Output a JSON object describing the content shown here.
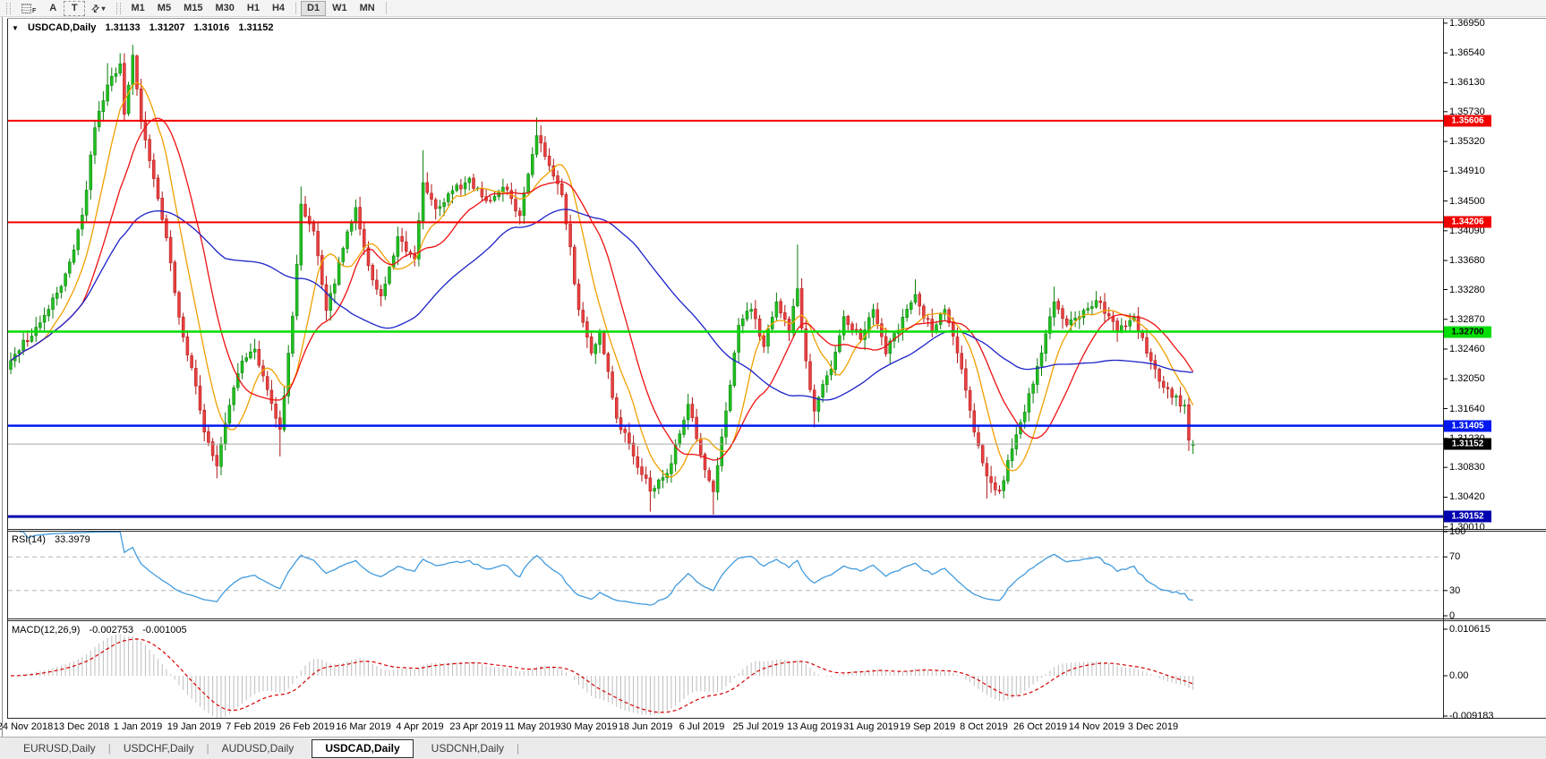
{
  "icons": {
    "collapse_triangle": "▼",
    "dropdown_caret": "▾",
    "arrange_arrows": "⇄"
  },
  "toolbar": {
    "grid_icon_sub_label": "F",
    "cursor_label": "A",
    "text_label": "T",
    "timeframes": [
      "M1",
      "M5",
      "M15",
      "M30",
      "H1",
      "H4",
      "D1",
      "W1",
      "MN"
    ],
    "active_timeframe": "D1"
  },
  "chart_header": {
    "symbol_period": "USDCAD,Daily",
    "open": "1.31133",
    "high": "1.31207",
    "low": "1.31016",
    "close": "1.31152"
  },
  "indicators": {
    "rsi": {
      "label": "RSI(14)",
      "value": "33.3979",
      "axis_ticks": [
        "100",
        "70",
        "30",
        "0"
      ],
      "overbought": 70,
      "oversold": 30,
      "line_color": "#419bde"
    },
    "macd": {
      "label": "MACD(12,26,9)",
      "macd_value": "-0.002753",
      "signal_value": "-0.001005",
      "axis_ticks": [
        "0.010615",
        "0.00",
        "-0.009183"
      ],
      "histogram_color": "#bdbdbd",
      "signal_color": "#d40000"
    }
  },
  "tab_bar": {
    "tabs": [
      "EURUSD,Daily",
      "USDCHF,Daily",
      "AUDUSD,Daily",
      "USDCAD,Daily",
      "USDCNH,Daily"
    ],
    "active_tab": "USDCAD,Daily"
  },
  "chart_data": {
    "type": "candlestick",
    "symbol": "USDCAD",
    "period": "Daily",
    "bars": 282,
    "price_range": [
      1.29985,
      1.3701
    ],
    "price_axis_ticks": [
      "1.36950",
      "1.36540",
      "1.36130",
      "1.35730",
      "1.35320",
      "1.34910",
      "1.34500",
      "1.34090",
      "1.33680",
      "1.33280",
      "1.32870",
      "1.32460",
      "1.32050",
      "1.31640",
      "1.31230",
      "1.30830",
      "1.30420",
      "1.30010"
    ],
    "x_axis_dates": [
      "24 Nov 2018",
      "13 Dec 2018",
      "1 Jan 2019",
      "19 Jan 2019",
      "7 Feb 2019",
      "26 Feb 2019",
      "16 Mar 2019",
      "4 Apr 2019",
      "23 Apr 2019",
      "11 May 2019",
      "30 May 2019",
      "18 Jun 2019",
      "6 Jul 2019",
      "25 Jul 2019",
      "13 Aug 2019",
      "31 Aug 2019",
      "19 Sep 2019",
      "8 Oct 2019",
      "26 Oct 2019",
      "14 Nov 2019",
      "3 Dec 2019"
    ],
    "levels": [
      {
        "label": "1.35606",
        "value": 1.35606,
        "color": "#f20000",
        "text_color": "#ffffff",
        "width": 2,
        "type": "resistance"
      },
      {
        "label": "1.34206",
        "value": 1.34206,
        "color": "#f20000",
        "text_color": "#ffffff",
        "width": 2,
        "type": "resistance"
      },
      {
        "label": "1.32700",
        "value": 1.327,
        "color": "#00dd00",
        "text_color": "#000000",
        "width": 2.5,
        "type": "pivot"
      },
      {
        "label": "1.31405",
        "value": 1.31405,
        "color": "#0018f0",
        "text_color": "#ffffff",
        "width": 2.5,
        "type": "support"
      },
      {
        "label": "1.30152",
        "value": 1.30152,
        "color": "#0000b0",
        "text_color": "#ffffff",
        "width": 3,
        "type": "support"
      }
    ],
    "current_price": {
      "label": "1.31152",
      "value": 1.31152,
      "flag_bg": "#000000",
      "flag_text": "#ffffff",
      "line_color": "#a6a6a6"
    },
    "candle_colors": {
      "up_fill": "#1fbf1f",
      "up_border": "#0a7c0a",
      "down_fill": "#e84040",
      "down_border": "#ae1414"
    },
    "moving_averages": [
      {
        "period": 9,
        "color": "#f0a000"
      },
      {
        "period": 18,
        "color": "#ee1111"
      },
      {
        "period": 52,
        "color": "#1c22c8"
      }
    ],
    "last_bar": {
      "open": 1.31133,
      "high": 1.31207,
      "low": 1.31016,
      "close": 1.31152
    },
    "close_anchors": [
      [
        0,
        1.323
      ],
      [
        5,
        1.3265
      ],
      [
        9,
        1.33
      ],
      [
        13,
        1.335
      ],
      [
        17,
        1.343
      ],
      [
        20,
        1.355
      ],
      [
        23,
        1.361
      ],
      [
        26,
        1.364
      ],
      [
        27,
        1.357
      ],
      [
        29,
        1.365
      ],
      [
        31,
        1.356
      ],
      [
        34,
        1.348
      ],
      [
        37,
        1.34
      ],
      [
        40,
        1.329
      ],
      [
        43,
        1.322
      ],
      [
        46,
        1.313
      ],
      [
        49,
        1.3085
      ],
      [
        52,
        1.317
      ],
      [
        55,
        1.323
      ],
      [
        58,
        1.3245
      ],
      [
        61,
        1.319
      ],
      [
        64,
        1.3135
      ],
      [
        67,
        1.329
      ],
      [
        69,
        1.3445
      ],
      [
        72,
        1.341
      ],
      [
        75,
        1.33
      ],
      [
        79,
        1.3385
      ],
      [
        82,
        1.344
      ],
      [
        85,
        1.336
      ],
      [
        88,
        1.332
      ],
      [
        92,
        1.34
      ],
      [
        96,
        1.337
      ],
      [
        98,
        1.3475
      ],
      [
        101,
        1.344
      ],
      [
        105,
        1.3465
      ],
      [
        109,
        1.348
      ],
      [
        113,
        1.345
      ],
      [
        117,
        1.347
      ],
      [
        121,
        1.343
      ],
      [
        125,
        1.354
      ],
      [
        128,
        1.35
      ],
      [
        131,
        1.346
      ],
      [
        135,
        1.33
      ],
      [
        138,
        1.324
      ],
      [
        140,
        1.327
      ],
      [
        144,
        1.315
      ],
      [
        148,
        1.31
      ],
      [
        152,
        1.305
      ],
      [
        156,
        1.3075
      ],
      [
        159,
        1.313
      ],
      [
        161,
        1.317
      ],
      [
        164,
        1.31
      ],
      [
        167,
        1.305
      ],
      [
        170,
        1.316
      ],
      [
        173,
        1.328
      ],
      [
        176,
        1.33
      ],
      [
        179,
        1.325
      ],
      [
        182,
        1.331
      ],
      [
        185,
        1.327
      ],
      [
        187,
        1.333
      ],
      [
        189,
        1.323
      ],
      [
        191,
        1.316
      ],
      [
        195,
        1.322
      ],
      [
        198,
        1.329
      ],
      [
        202,
        1.326
      ],
      [
        205,
        1.33
      ],
      [
        208,
        1.324
      ],
      [
        212,
        1.329
      ],
      [
        215,
        1.332
      ],
      [
        219,
        1.327
      ],
      [
        222,
        1.33
      ],
      [
        226,
        1.322
      ],
      [
        229,
        1.313
      ],
      [
        232,
        1.307
      ],
      [
        235,
        1.305
      ],
      [
        238,
        1.311
      ],
      [
        241,
        1.316
      ],
      [
        245,
        1.324
      ],
      [
        248,
        1.331
      ],
      [
        251,
        1.328
      ],
      [
        255,
        1.33
      ],
      [
        259,
        1.331
      ],
      [
        263,
        1.327
      ],
      [
        267,
        1.329
      ],
      [
        270,
        1.324
      ],
      [
        273,
        1.32
      ],
      [
        276,
        1.318
      ],
      [
        279,
        1.3168
      ],
      [
        280,
        1.312
      ],
      [
        281,
        1.31152
      ]
    ],
    "spike_highs": [
      [
        23,
        1.364
      ],
      [
        29,
        1.3665
      ],
      [
        69,
        1.347
      ],
      [
        98,
        1.352
      ],
      [
        125,
        1.3565
      ],
      [
        187,
        1.339
      ],
      [
        215,
        1.3342
      ],
      [
        248,
        1.3332
      ]
    ],
    "spike_lows": [
      [
        49,
        1.3068
      ],
      [
        64,
        1.3098
      ],
      [
        152,
        1.3022
      ],
      [
        167,
        1.3018
      ],
      [
        191,
        1.3138
      ],
      [
        232,
        1.304
      ]
    ]
  }
}
